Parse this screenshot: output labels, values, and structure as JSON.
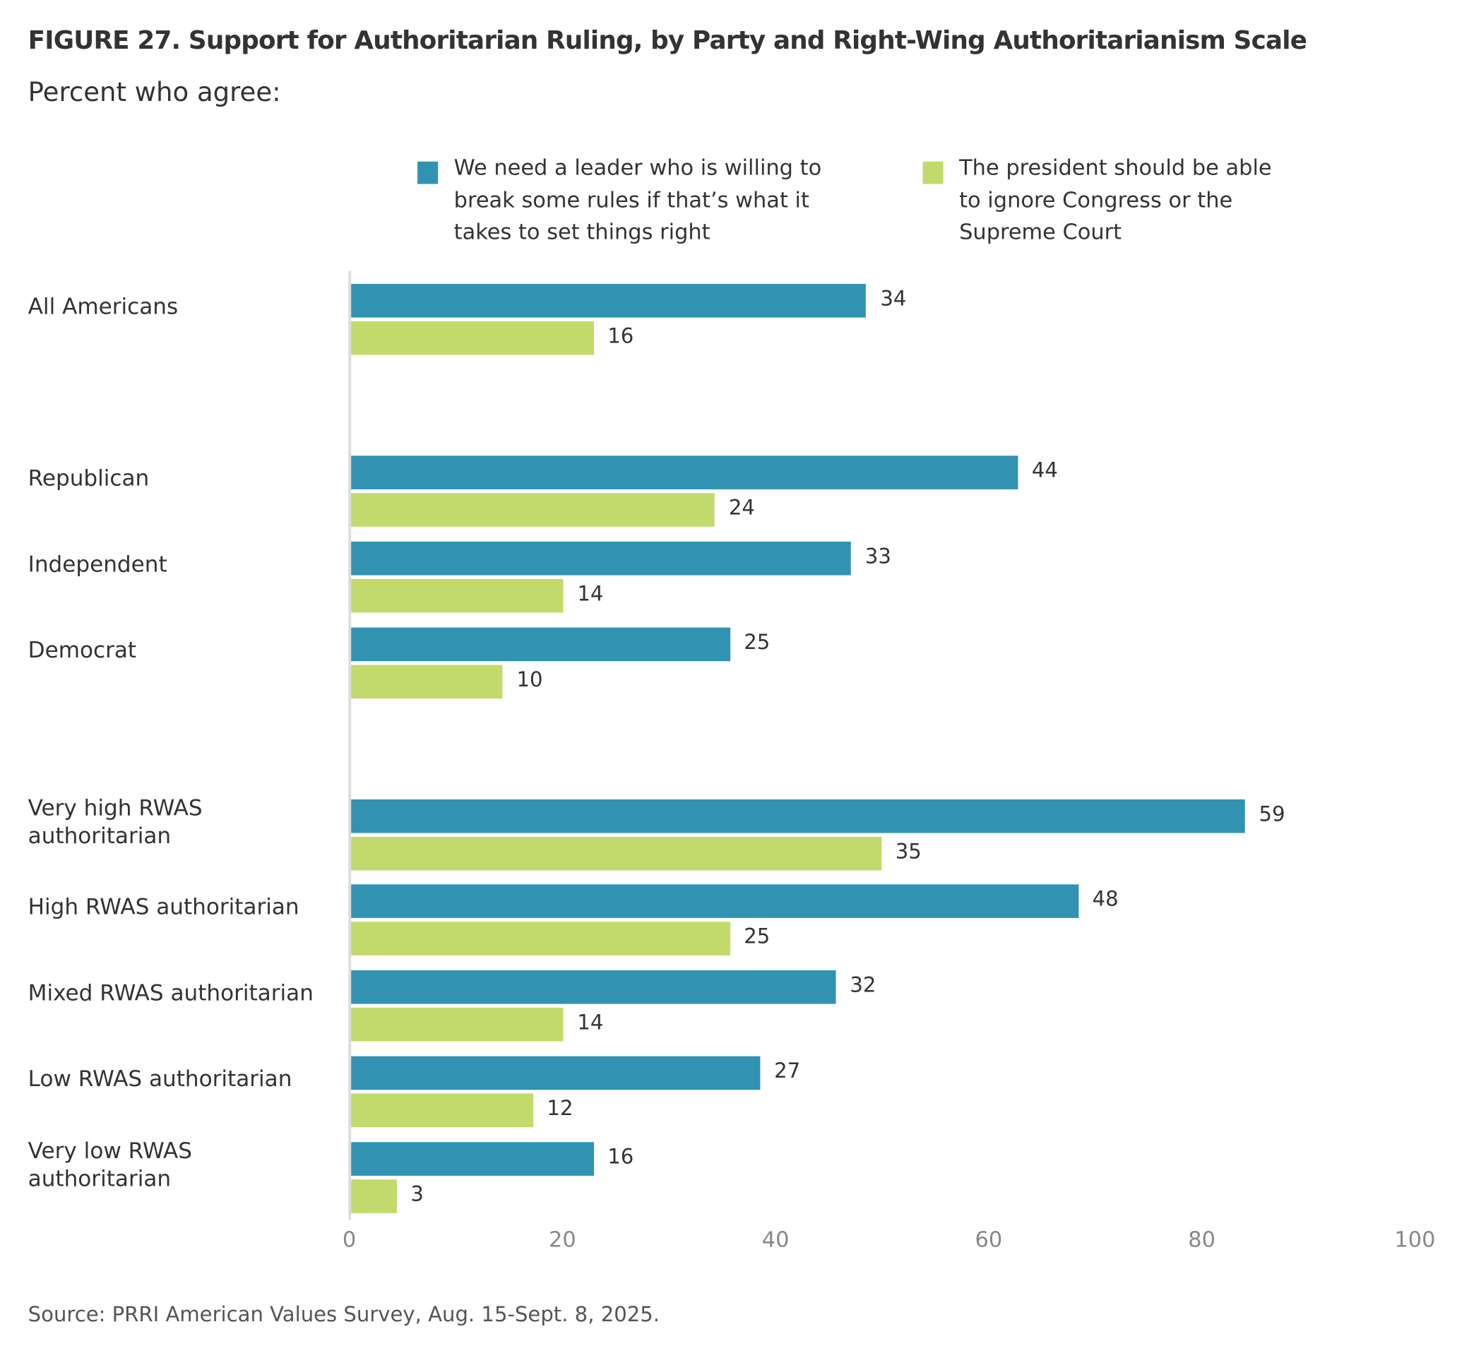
{
  "chart_data": {
    "type": "bar",
    "orientation": "horizontal",
    "title": "FIGURE 27.  Support for Authoritarian Ruling, by Party and Right-Wing Authoritarianism Scale",
    "subtitle": "Percent who agree:",
    "categories": [
      "All Americans",
      "Republican",
      "Independent",
      "Democrat",
      "Very high RWAS\nauthoritarian",
      "High RWAS authoritarian",
      "Mixed RWAS authoritarian",
      "Low RWAS authoritarian",
      "Very low RWAS\nauthoritarian"
    ],
    "series": [
      {
        "name": "We need a leader who is willing to\nbreak some rules if that’s what it\ntakes to set things right",
        "color": "#3193b1",
        "values": [
          34,
          44,
          33,
          25,
          59,
          48,
          32,
          27,
          16
        ]
      },
      {
        "name": "The president should be able\nto ignore Congress or the\nSupreme Court",
        "color": "#c2da6b",
        "values": [
          16,
          24,
          14,
          10,
          35,
          25,
          14,
          12,
          3
        ]
      }
    ],
    "xticks": [
      "0",
      "20",
      "40",
      "60",
      "80",
      "100"
    ],
    "xlim": [
      0,
      100
    ],
    "legend_position": "top",
    "grid": false,
    "source": "Source: PRRI American Values Survey, Aug. 15-Sept. 8, 2025."
  }
}
